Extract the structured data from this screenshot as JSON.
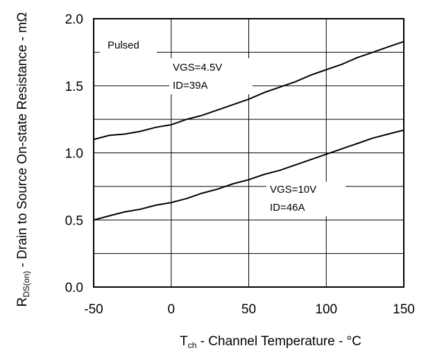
{
  "chart_data": {
    "type": "line",
    "title": "",
    "xlabel": {
      "main": "T",
      "sub": "ch",
      "rest": " - Channel Temperature -  °C"
    },
    "ylabel": {
      "main": "R",
      "sub": "DS(on)",
      "rest": " - Drain to Source On-state Resistance - mΩ"
    },
    "xlim": [
      -50,
      150
    ],
    "ylim": [
      0.0,
      2.0
    ],
    "xticks": [
      -50,
      0,
      50,
      100,
      150
    ],
    "yticks": [
      0.0,
      0.5,
      1.0,
      1.5,
      2.0
    ],
    "xtick_labels": [
      "-50",
      "0",
      "50",
      "100",
      "150"
    ],
    "ytick_labels": [
      "0.0",
      "0.5",
      "1.0",
      "1.5",
      "2.0"
    ],
    "grid": true,
    "condition_label": "Pulsed",
    "series": [
      {
        "label_lines": [
          "VGS=4.5V",
          "ID=39A"
        ],
        "x": [
          -50,
          -40,
          -30,
          -20,
          -10,
          0,
          10,
          20,
          30,
          40,
          50,
          60,
          70,
          80,
          90,
          100,
          110,
          120,
          130,
          140,
          150
        ],
        "y": [
          1.1,
          1.13,
          1.14,
          1.16,
          1.19,
          1.21,
          1.25,
          1.28,
          1.32,
          1.36,
          1.4,
          1.45,
          1.49,
          1.53,
          1.58,
          1.62,
          1.66,
          1.71,
          1.75,
          1.79,
          1.83
        ]
      },
      {
        "label_lines": [
          "VGS=10V",
          "ID=46A"
        ],
        "x": [
          -50,
          -40,
          -30,
          -20,
          -10,
          0,
          10,
          20,
          30,
          40,
          50,
          60,
          70,
          80,
          90,
          100,
          110,
          120,
          130,
          140,
          150
        ],
        "y": [
          0.5,
          0.53,
          0.56,
          0.58,
          0.61,
          0.63,
          0.66,
          0.7,
          0.73,
          0.77,
          0.8,
          0.84,
          0.87,
          0.91,
          0.95,
          0.99,
          1.03,
          1.07,
          1.11,
          1.14,
          1.17
        ]
      }
    ]
  }
}
